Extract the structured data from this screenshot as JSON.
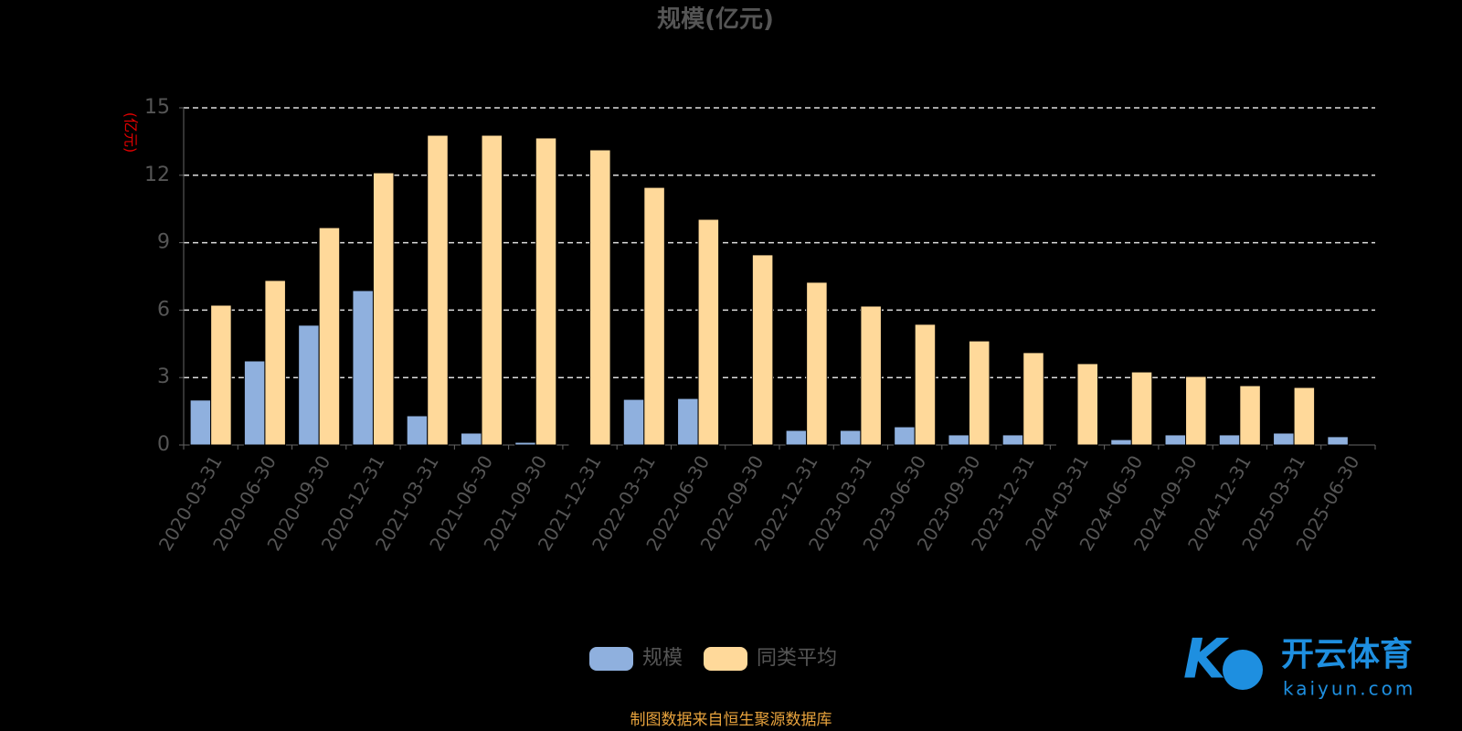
{
  "chart_data": {
    "type": "bar",
    "title": "规模(亿元)",
    "y_label": "(亿元)",
    "categories": [
      "2020-03-31",
      "2020-06-30",
      "2020-09-30",
      "2020-12-31",
      "2021-03-31",
      "2021-06-30",
      "2021-09-30",
      "2021-12-31",
      "2022-03-31",
      "2022-06-30",
      "2022-09-30",
      "2022-12-31",
      "2023-03-31",
      "2023-06-30",
      "2023-09-30",
      "2023-12-31",
      "2024-03-31",
      "2024-06-30",
      "2024-09-30",
      "2024-12-31",
      "2025-03-31",
      "2025-06-30"
    ],
    "series": [
      {
        "name": "规模",
        "color": "#8fb0de",
        "values": [
          2.0,
          3.74,
          5.33,
          6.87,
          1.3,
          0.53,
          0.12,
          0.02,
          2.03,
          2.07,
          0,
          0.65,
          0.65,
          0.81,
          0.45,
          0.45,
          0.03,
          0.24,
          0.45,
          0.45,
          0.53,
          0.37
        ]
      },
      {
        "name": "同类平均",
        "color": "#ffd99a",
        "values": [
          6.22,
          7.32,
          9.67,
          12.11,
          13.78,
          13.78,
          13.66,
          13.13,
          11.46,
          10.04,
          8.46,
          7.24,
          6.18,
          5.37,
          4.63,
          4.11,
          3.62,
          3.25,
          3.05,
          2.64,
          2.56,
          null
        ]
      }
    ],
    "ylim": [
      0,
      15
    ],
    "yticks": [
      0,
      3,
      6,
      9,
      12,
      15
    ],
    "grid": true,
    "source": "制图数据来自恒生聚源数据库"
  },
  "watermark": {
    "brand": "开云体育",
    "url": "kaiyun.com"
  }
}
